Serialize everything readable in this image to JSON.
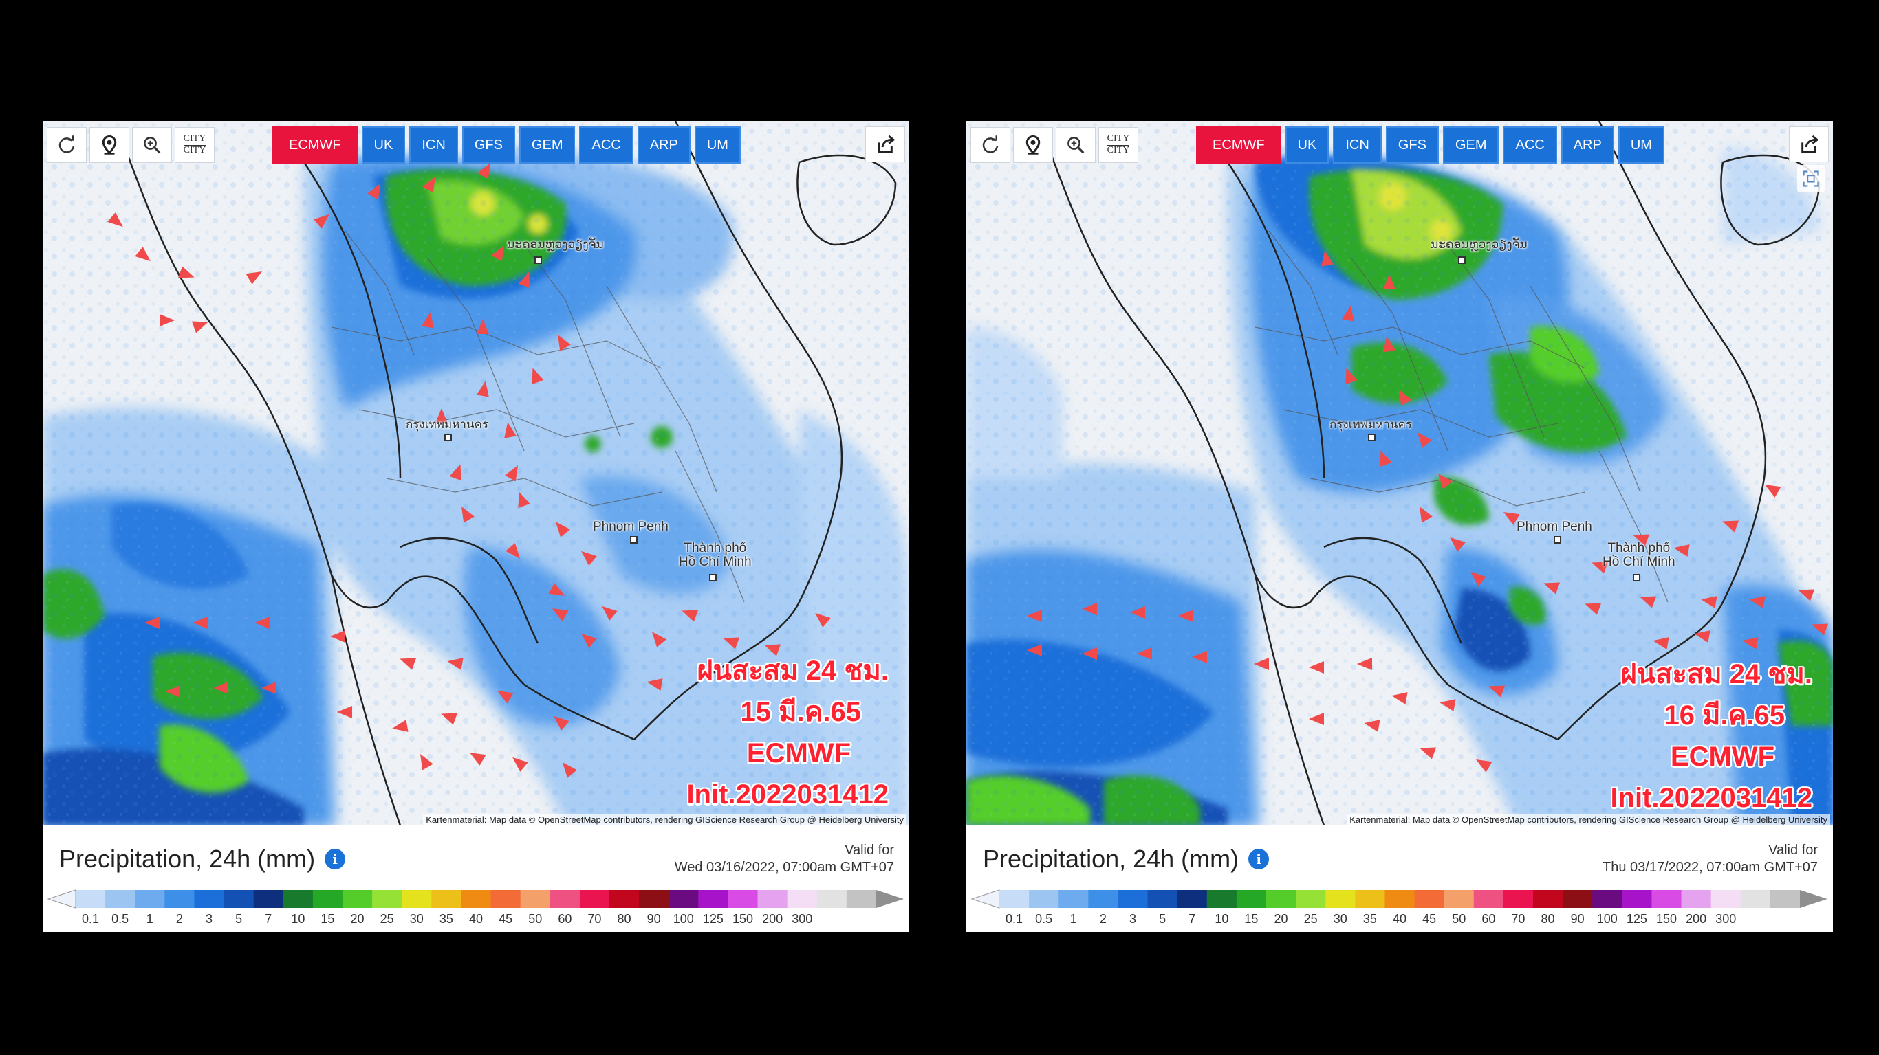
{
  "toolbar": {
    "city_line1": "CITY",
    "city_line2": "CITY",
    "models": [
      "ECMWF",
      "UK",
      "ICN",
      "GFS",
      "GEM",
      "ACC",
      "ARP",
      "UM"
    ],
    "active_model": "ECMWF"
  },
  "map": {
    "labels": {
      "vientiane": "ນະຄອນຫຼວງວຽງຈັນ",
      "bangkok": "กรุงเทพมหานคร",
      "phnom_penh": "Phnom Penh",
      "hcm_line1": "Thành phố",
      "hcm_line2": "Hồ Chí Minh"
    },
    "attribution": "Kartenmaterial: Map data © OpenStreetMap contributors, rendering GIScience Research Group @ Heidelberg University"
  },
  "legend": {
    "title": "Precipitation, 24h (mm)",
    "valid_for_label": "Valid for",
    "scale_values": [
      "0.1",
      "0.5",
      "1",
      "2",
      "3",
      "5",
      "7",
      "10",
      "15",
      "20",
      "25",
      "30",
      "35",
      "40",
      "45",
      "50",
      "60",
      "70",
      "80",
      "90",
      "100",
      "125",
      "150",
      "200",
      "300"
    ],
    "scale_colors": [
      "#c6dcf7",
      "#9cc5f2",
      "#6eabee",
      "#3e8fe8",
      "#1c6fd9",
      "#1451b5",
      "#0e2f7e",
      "#177a2c",
      "#25a826",
      "#54cd2a",
      "#95e136",
      "#e3e21d",
      "#ecc019",
      "#ef8a13",
      "#f36c37",
      "#f4a06a",
      "#ee5182",
      "#ea1550",
      "#c1061d",
      "#8c0f16",
      "#6b0b82",
      "#a713c9",
      "#d84be5",
      "#e5a2ee",
      "#f3def6",
      "#e2e2e2",
      "#c3c3c3"
    ]
  },
  "panels": [
    {
      "annotation": {
        "line1": "ฝนสะสม 24 ชม.",
        "line2": "15 มี.ค.65",
        "line3": "ECMWF",
        "line4": "Init.2022031412"
      },
      "valid_for": "Wed 03/16/2022, 07:00am GMT+07"
    },
    {
      "annotation": {
        "line1": "ฝนสะสม 24 ชม.",
        "line2": "16 มี.ค.65",
        "line3": "ECMWF",
        "line4": "Init.2022031412"
      },
      "valid_for": "Thu 03/17/2022, 07:00am GMT+07"
    }
  ],
  "colors": {
    "active_tab": "#e9143d",
    "tab": "#1a72d8",
    "annotation_text": "#ff2030",
    "wind_arrow": "#f04a4a"
  },
  "icon_names": [
    "refresh-icon",
    "location-pin-icon",
    "zoom-in-icon",
    "share-icon",
    "expand-icon",
    "info-icon"
  ]
}
